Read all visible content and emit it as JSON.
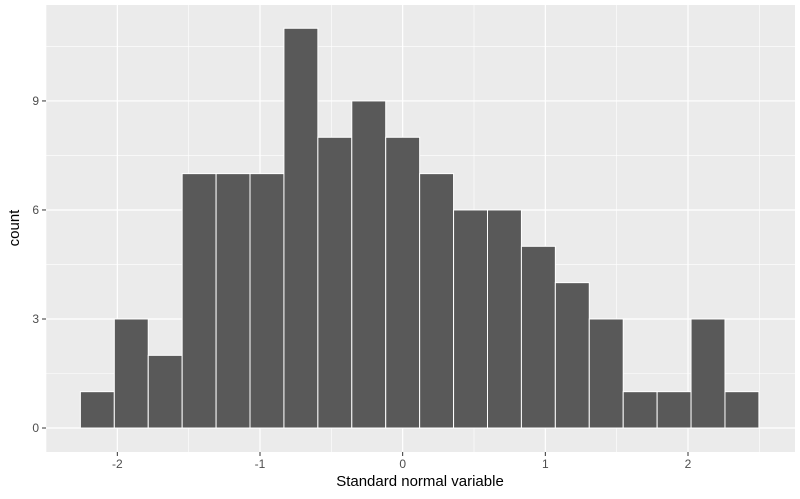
{
  "chart_data": {
    "type": "bar",
    "subtype": "histogram",
    "title": "",
    "xlabel": "Standard normal variable",
    "ylabel": "count",
    "bin_start": -2.259,
    "bin_width": 0.2378,
    "counts": [
      1,
      3,
      2,
      7,
      7,
      7,
      11,
      8,
      9,
      8,
      7,
      6,
      6,
      5,
      4,
      3,
      1,
      1,
      3,
      1
    ],
    "xlim": [
      -2.5,
      2.75
    ],
    "ylim": [
      -0.66,
      11.64
    ],
    "x_ticks": [
      -2,
      -1,
      0,
      1,
      2
    ],
    "x_tick_labels": [
      "-2",
      "-1",
      "0",
      "1",
      "2"
    ],
    "y_ticks": [
      0,
      3,
      6,
      9
    ],
    "y_tick_labels": [
      "0",
      "3",
      "6",
      "9"
    ],
    "grid": true,
    "colors": {
      "panel": "#EBEBEB",
      "grid": "#FFFFFF",
      "bar_fill": "#595959",
      "bar_outline": "#FFFFFF",
      "tick_text": "#4D4D4D"
    }
  }
}
